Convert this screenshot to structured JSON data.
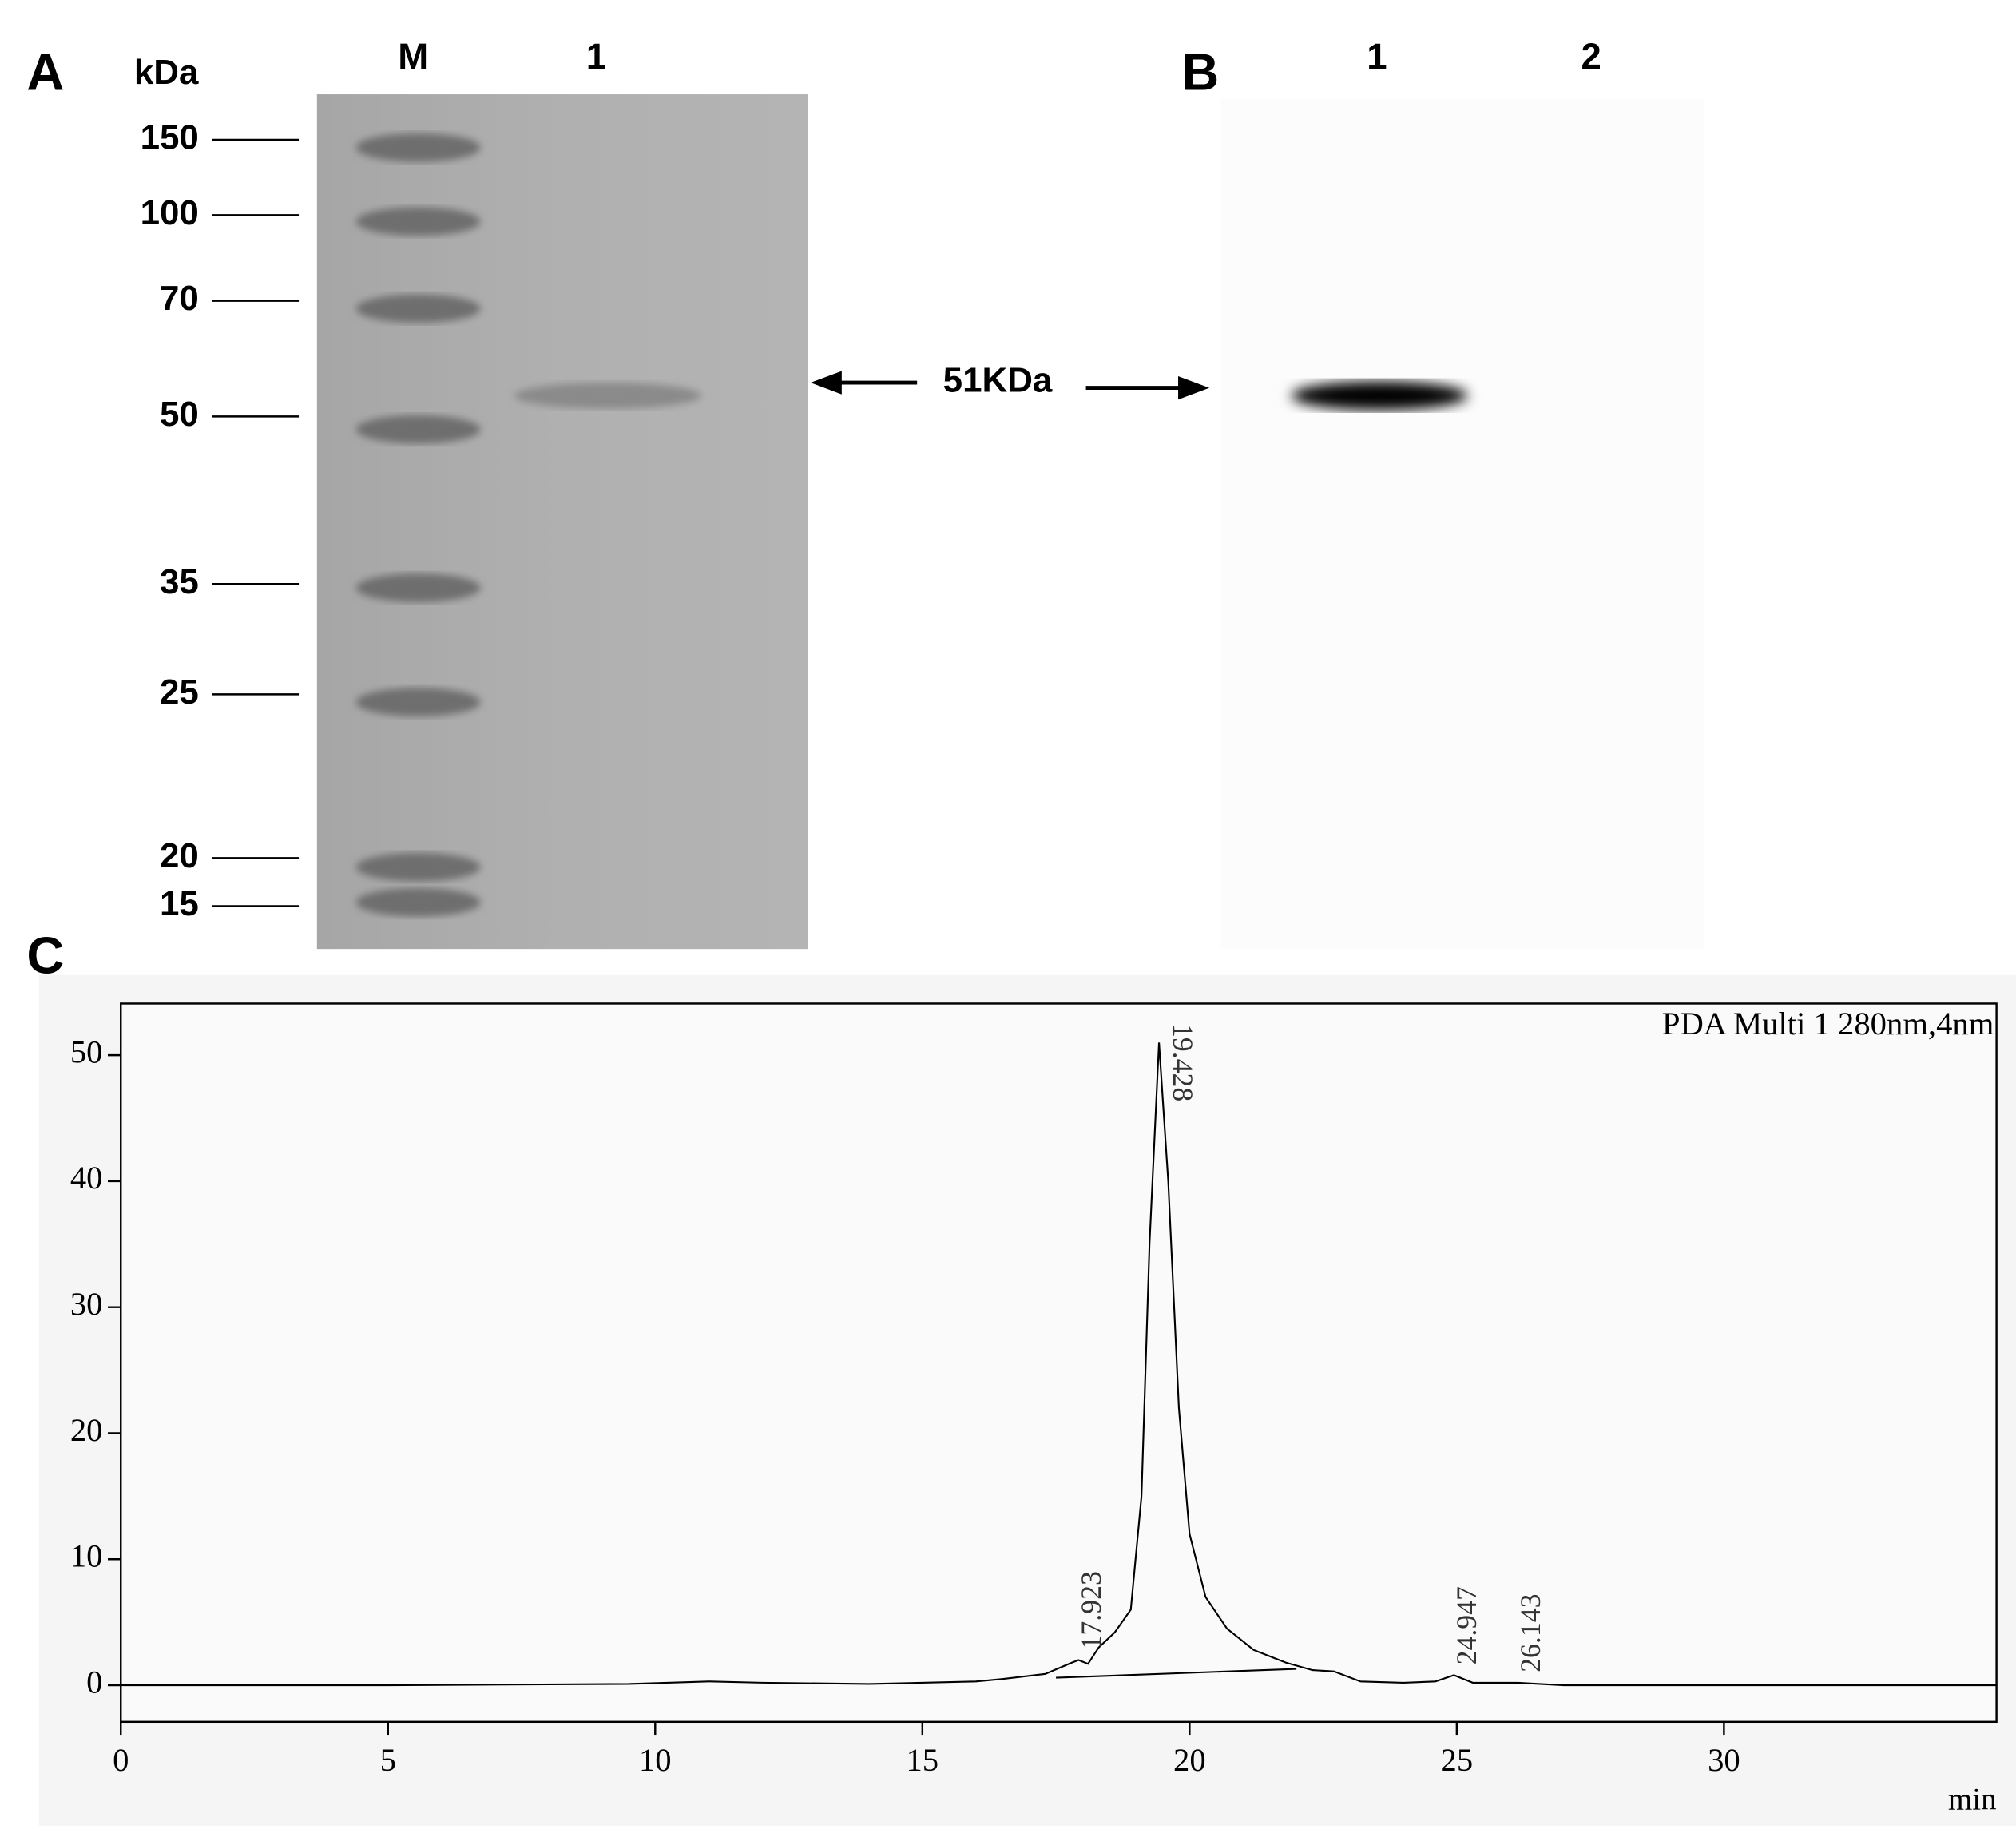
{
  "panel_a": {
    "label": "A",
    "unit": "kDa",
    "lanes": [
      "M",
      "1"
    ],
    "markers": [
      150,
      100,
      70,
      50,
      35,
      25,
      20,
      15
    ]
  },
  "band_label": "51KDa",
  "panel_b": {
    "label": "B",
    "lanes": [
      "1",
      "2"
    ]
  },
  "chart_data": {
    "type": "line",
    "label": "C",
    "annotation": "PDA Multi 1 280nm,4nm",
    "xlabel": "min",
    "xlim": [
      0,
      35.1
    ],
    "ylim": [
      -2.9,
      54.1
    ],
    "xticks": [
      0,
      5,
      10,
      15,
      20,
      25,
      30
    ],
    "yticks": [
      0,
      10,
      20,
      30,
      40,
      50
    ],
    "series": [
      {
        "color": "#000000",
        "x": [
          0,
          5,
          9.5,
          11,
          12,
          14,
          16,
          16.5,
          17.3,
          17.8,
          17.923,
          18.1,
          18.3,
          18.6,
          18.9,
          19.1,
          19.25,
          19.428,
          19.6,
          19.8,
          20.0,
          20.3,
          20.7,
          21.2,
          21.8,
          22.3,
          22.7,
          23.2,
          24.0,
          24.6,
          24.947,
          25.3,
          26.143,
          27,
          30,
          35.1
        ],
        "values": [
          0,
          0,
          0.1,
          0.3,
          0.2,
          0.1,
          0.3,
          0.5,
          0.9,
          1.8,
          2.0,
          1.7,
          3.0,
          4.2,
          6,
          15,
          35,
          51,
          40,
          22,
          12,
          7,
          4.5,
          2.8,
          1.8,
          1.2,
          1.1,
          0.3,
          0.2,
          0.3,
          0.8,
          0.2,
          0.2,
          0,
          0,
          0
        ]
      },
      {
        "color": "#000000",
        "x": [
          17.5,
          22.0
        ],
        "values": [
          0.6,
          1.3
        ]
      }
    ],
    "peaks": [
      17.923,
      19.428,
      24.947,
      26.143
    ]
  }
}
